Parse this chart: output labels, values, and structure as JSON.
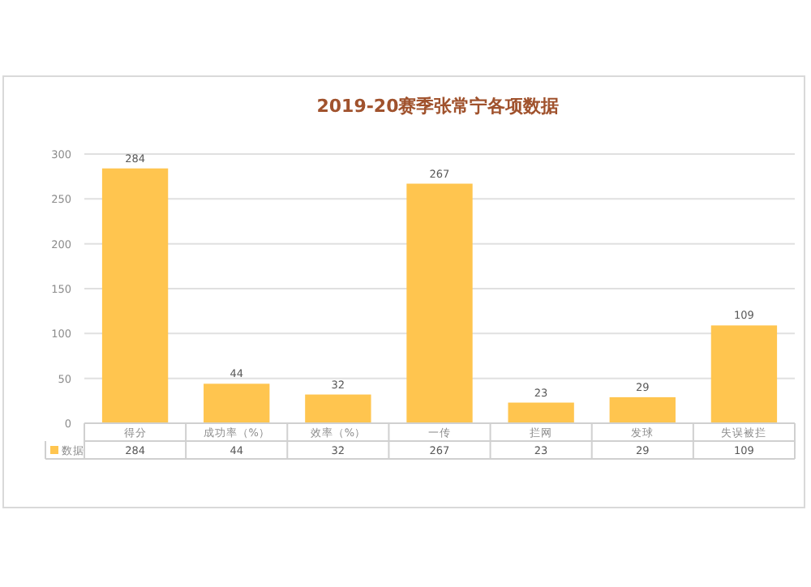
{
  "chart_data": {
    "type": "bar",
    "title": "2019-20赛季张常宁各项数据",
    "categories": [
      "得分",
      "成功率（%）",
      "效率（%）",
      "一传",
      "拦网",
      "发球",
      "失误被拦"
    ],
    "series": [
      {
        "name": "数据",
        "color": "#ffc54f",
        "values": [
          284,
          44,
          32,
          267,
          23,
          29,
          109
        ]
      }
    ],
    "ylim": [
      0,
      300
    ],
    "yticks": [
      0,
      50,
      100,
      150,
      200,
      250,
      300
    ],
    "grid": "y",
    "data_labels": true,
    "annotations": [
      "284",
      "44",
      "32",
      "267",
      "23",
      "29",
      "109"
    ]
  }
}
